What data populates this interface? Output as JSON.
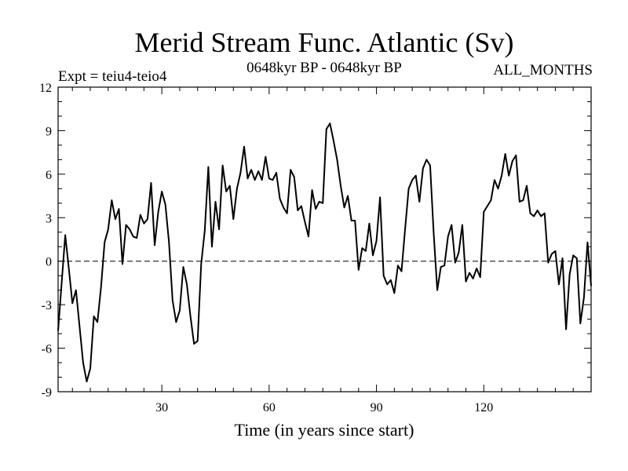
{
  "header": {
    "title": "Merid Stream Func. Atlantic (Sv)",
    "expt": "Expt = teiu4-teio4",
    "period": "0648kyr BP - 0648kyr BP",
    "months": "ALL_MONTHS"
  },
  "chart_data": {
    "type": "line",
    "title": "Merid Stream Func. Atlantic (Sv)",
    "xlabel": "Time (in years since start)",
    "ylabel": "",
    "xlim": [
      1,
      150
    ],
    "ylim": [
      -9,
      12
    ],
    "xticks": [
      30,
      60,
      90,
      120
    ],
    "yticks": [
      -9,
      -6,
      -3,
      0,
      3,
      6,
      9,
      12
    ],
    "zero_line": true,
    "series": [
      {
        "name": "teiu4-teio4",
        "x": [
          1,
          2,
          3,
          4,
          5,
          6,
          7,
          8,
          9,
          10,
          11,
          12,
          13,
          14,
          15,
          16,
          17,
          18,
          19,
          20,
          21,
          22,
          23,
          24,
          25,
          26,
          27,
          28,
          29,
          30,
          31,
          32,
          33,
          34,
          35,
          36,
          37,
          38,
          39,
          40,
          41,
          42,
          43,
          44,
          45,
          46,
          47,
          48,
          49,
          50,
          51,
          52,
          53,
          54,
          55,
          56,
          57,
          58,
          59,
          60,
          61,
          62,
          63,
          64,
          65,
          66,
          67,
          68,
          69,
          70,
          71,
          72,
          73,
          74,
          75,
          76,
          77,
          78,
          79,
          80,
          81,
          82,
          83,
          84,
          85,
          86,
          87,
          88,
          89,
          90,
          91,
          92,
          93,
          94,
          95,
          96,
          97,
          98,
          99,
          100,
          101,
          102,
          103,
          104,
          105,
          106,
          107,
          108,
          109,
          110,
          111,
          112,
          113,
          114,
          115,
          116,
          117,
          118,
          119,
          120,
          121,
          122,
          123,
          124,
          125,
          126,
          127,
          128,
          129,
          130,
          131,
          132,
          133,
          134,
          135,
          136,
          137,
          138,
          139,
          140,
          141,
          142,
          143,
          144,
          145,
          146,
          147,
          148,
          149,
          150
        ],
        "values": [
          -4.8,
          -1.5,
          1.8,
          -0.5,
          -2.9,
          -2.0,
          -4.5,
          -7.0,
          -8.3,
          -7.4,
          -3.8,
          -4.2,
          -1.8,
          1.3,
          2.2,
          4.2,
          2.9,
          3.6,
          -0.2,
          2.5,
          2.2,
          1.7,
          1.6,
          3.2,
          2.6,
          2.9,
          5.4,
          1.1,
          3.4,
          4.8,
          3.9,
          1.3,
          -2.7,
          -4.2,
          -3.4,
          -0.4,
          -1.6,
          -3.8,
          -5.7,
          -5.5,
          -0.2,
          2.1,
          6.5,
          1.0,
          4.1,
          2.2,
          6.6,
          4.8,
          5.2,
          2.9,
          5.0,
          6.1,
          7.9,
          5.7,
          6.3,
          5.6,
          6.2,
          5.6,
          7.2,
          5.7,
          5.6,
          6.1,
          4.3,
          3.7,
          3.3,
          6.3,
          5.8,
          3.5,
          3.8,
          2.7,
          1.7,
          4.9,
          3.6,
          4.1,
          4.0,
          9.1,
          9.5,
          8.3,
          7.0,
          5.2,
          3.7,
          4.5,
          2.8,
          2.8,
          -0.6,
          0.9,
          0.7,
          2.6,
          0.4,
          1.4,
          4.4,
          -1.0,
          -1.6,
          -1.3,
          -2.2,
          -0.3,
          -0.7,
          2.2,
          5.0,
          5.6,
          5.9,
          4.1,
          6.4,
          7.0,
          6.6,
          1.9,
          -2.0,
          -0.4,
          -0.3,
          1.7,
          2.5,
          -0.1,
          0.6,
          2.5,
          -1.4,
          -0.8,
          -1.2,
          -0.5,
          -1.1,
          3.4,
          3.8,
          4.2,
          5.6,
          5.0,
          5.9,
          7.4,
          5.9,
          6.9,
          7.3,
          4.1,
          4.2,
          5.2,
          3.3,
          3.1,
          3.5,
          3.1,
          3.3,
          -0.1,
          0.5,
          0.7,
          -1.6,
          0.2,
          -4.7,
          -0.9,
          0.4,
          0.2,
          -4.3,
          -2.5,
          1.3,
          -1.7
        ]
      }
    ]
  }
}
